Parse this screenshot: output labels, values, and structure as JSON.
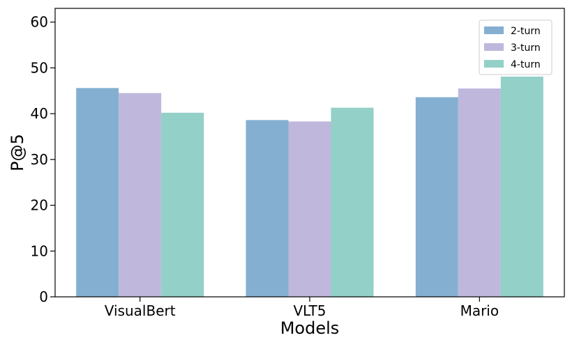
{
  "chart_data": {
    "type": "bar",
    "title": "",
    "xlabel": "Models",
    "ylabel": "P@5",
    "categories": [
      "VisualBert",
      "VLT5",
      "Mario"
    ],
    "series": [
      {
        "name": "2-turn",
        "values": [
          45.6,
          38.6,
          43.6
        ],
        "color": "#84afd1"
      },
      {
        "name": "3-turn",
        "values": [
          44.5,
          38.3,
          45.5
        ],
        "color": "#bfb8dc"
      },
      {
        "name": "4-turn",
        "values": [
          40.2,
          41.3,
          48.1
        ],
        "color": "#92d0c8"
      }
    ],
    "ylim": [
      0,
      63
    ],
    "yticks": [
      0,
      10,
      20,
      30,
      40,
      50,
      60
    ],
    "grid": false,
    "legend_position": "top-right"
  }
}
